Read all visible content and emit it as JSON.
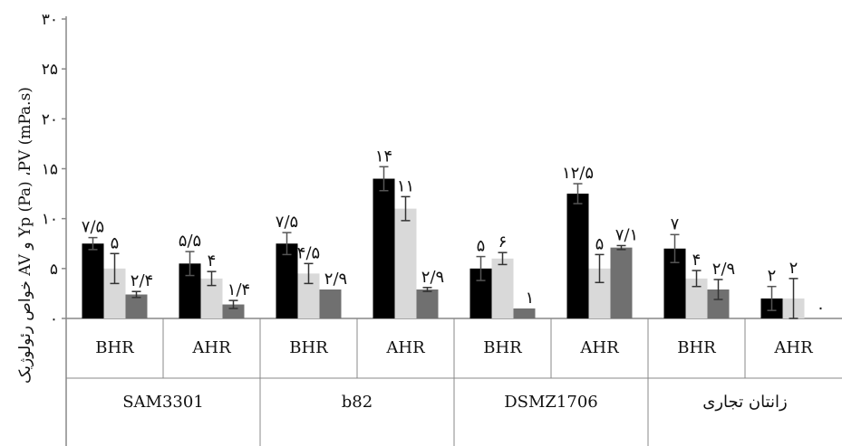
{
  "chart_data": {
    "type": "bar",
    "ylabel": "خواص رئولوژیک AV و Yp (Pa) ،PV (mPa.s)",
    "ylim": [
      0,
      30
    ],
    "yticks": [
      "۰",
      "۵",
      "۱۰",
      "۱۵",
      "۲۰",
      "۲۵",
      "۳۰"
    ],
    "groups": [
      "SAM3301",
      "b82",
      "DSMZ1706",
      "زانتان تجاری"
    ],
    "subgroups": [
      "BHR",
      "AHR",
      "BHR",
      "AHR",
      "BHR",
      "AHR",
      "BHR",
      "AHR"
    ],
    "series_colors": [
      "#000000",
      "#d9d9d9",
      "#707070"
    ],
    "series": [
      {
        "values": [
          7.5,
          5.5,
          7.5,
          14,
          5,
          12.5,
          7,
          2
        ],
        "labels": [
          "۷/۵",
          "۵/۵",
          "۷/۵",
          "۱۴",
          "۵",
          "۱۲/۵",
          "۷",
          "۲"
        ],
        "errors": [
          0.6,
          1.2,
          1.1,
          1.2,
          1.2,
          1.0,
          1.4,
          1.2
        ]
      },
      {
        "values": [
          5,
          4,
          4.5,
          11,
          6,
          5,
          4,
          2
        ],
        "labels": [
          "۵",
          "۴",
          "۴/۵",
          "۱۱",
          "۶",
          "۵",
          "۴",
          "۲"
        ],
        "errors": [
          1.5,
          0.7,
          1.0,
          1.2,
          0.6,
          1.4,
          0.8,
          2.0
        ]
      },
      {
        "values": [
          2.4,
          1.4,
          2.9,
          2.9,
          1,
          7.1,
          2.9,
          0
        ],
        "labels": [
          "۲/۴",
          "۱/۴",
          "۲/۹",
          "۲/۹",
          "۱",
          "۷/۱",
          "۲/۹",
          "۰"
        ],
        "errors": [
          0.3,
          0.4,
          0.0,
          0.2,
          0.0,
          0.2,
          1.0,
          0.0
        ]
      }
    ]
  }
}
